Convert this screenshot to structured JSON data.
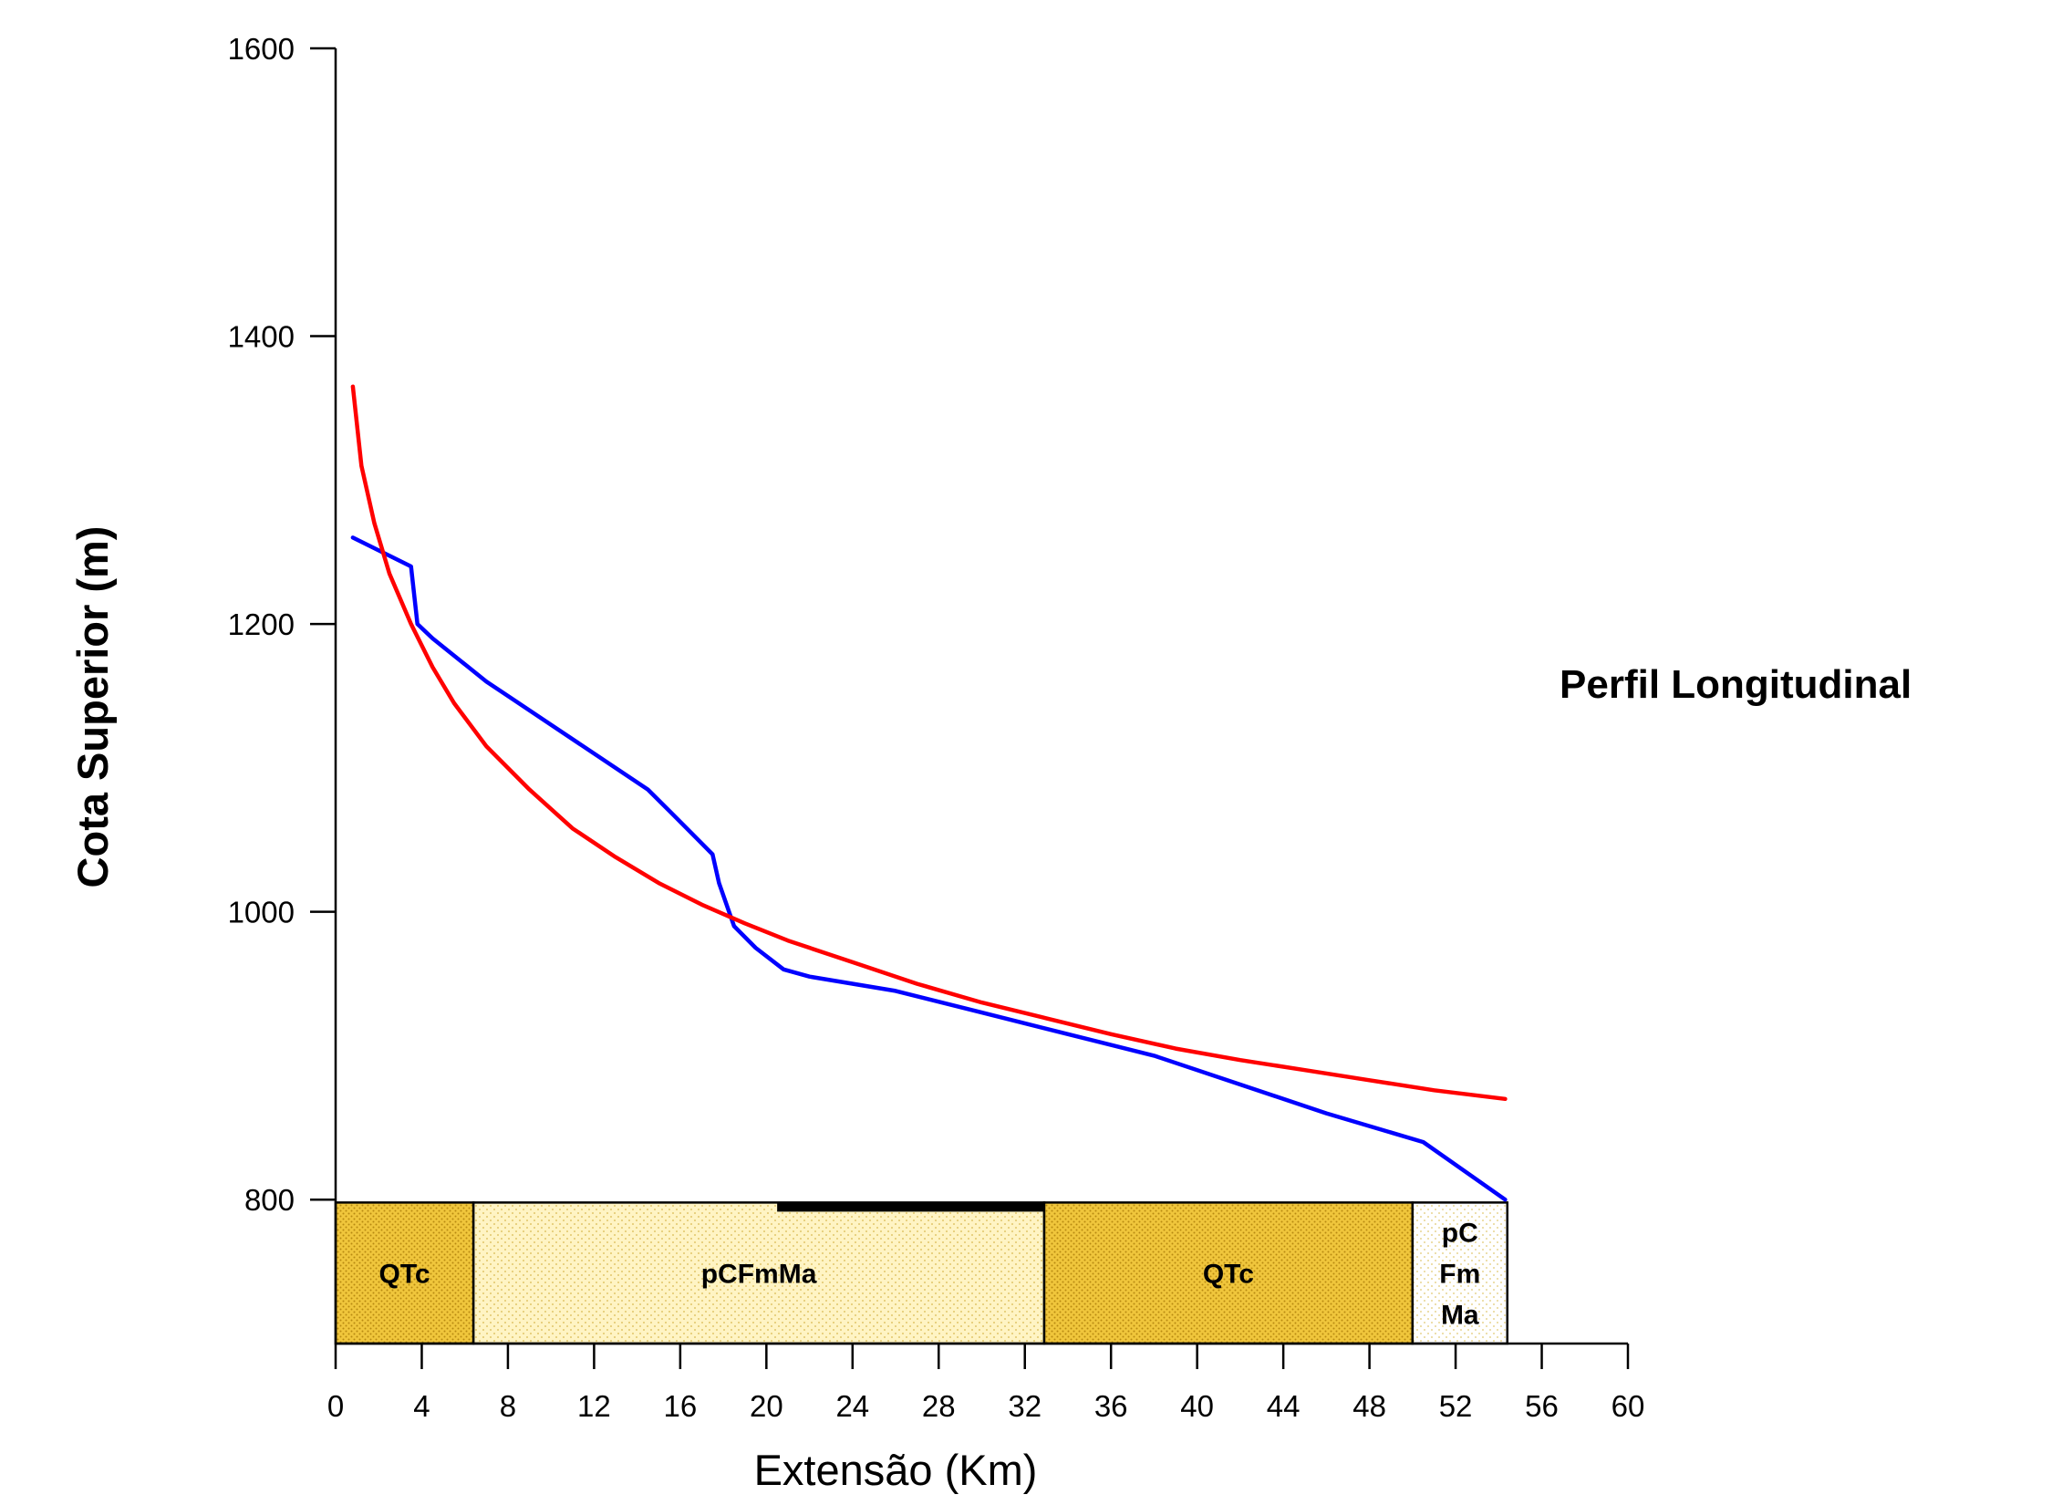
{
  "chart_data": {
    "type": "line",
    "side_title": "Perfil Longitudinal",
    "xlabel": "Extensão (Km)",
    "ylabel": "Cota Superior (m)",
    "xlim": [
      0,
      60
    ],
    "ylim": [
      700,
      1600
    ],
    "x_ticks": [
      0,
      4,
      8,
      12,
      16,
      20,
      24,
      28,
      32,
      36,
      40,
      44,
      48,
      52,
      56,
      60
    ],
    "y_ticks": [
      800,
      1000,
      1200,
      1400,
      1600
    ],
    "grid": false,
    "series": [
      {
        "color": "#0000ff",
        "x": [
          0.8,
          3.5,
          3.8,
          4.5,
          7.0,
          10.0,
          14.5,
          15.5,
          17.5,
          17.8,
          18.5,
          19.5,
          20.8,
          22.0,
          26.0,
          30.0,
          34.0,
          38.0,
          42.0,
          46.0,
          50.5,
          54.3
        ],
        "y": [
          1260,
          1240,
          1200,
          1190,
          1160,
          1130,
          1085,
          1070,
          1040,
          1020,
          990,
          975,
          960,
          955,
          945,
          930,
          915,
          900,
          880,
          860,
          840,
          800
        ]
      },
      {
        "color": "#ff0000",
        "x": [
          0.8,
          1.2,
          1.8,
          2.5,
          3.5,
          4.5,
          5.5,
          7.0,
          9.0,
          11.0,
          13.0,
          15.0,
          17.0,
          19.0,
          21.0,
          24.0,
          27.0,
          30.0,
          33.0,
          36.0,
          39.0,
          42.0,
          45.0,
          48.0,
          51.0,
          54.3
        ],
        "y": [
          1365,
          1310,
          1270,
          1235,
          1200,
          1170,
          1145,
          1115,
          1085,
          1058,
          1038,
          1020,
          1005,
          992,
          980,
          965,
          950,
          937,
          926,
          915,
          905,
          897,
          890,
          883,
          876,
          870
        ]
      }
    ],
    "geology": [
      {
        "label": "QTc",
        "x0": 0,
        "x1": 6.4,
        "color": "#f0c63c",
        "pattern": "dense"
      },
      {
        "label": "pCFmMa",
        "x0": 6.4,
        "x1": 32.9,
        "color": "#fff4c4",
        "pattern": "sparse"
      },
      {
        "label": "QTc",
        "x0": 32.9,
        "x1": 50.0,
        "color": "#f0c63c",
        "pattern": "dense"
      },
      {
        "label_lines": [
          "pC",
          "Fm",
          "Ma"
        ],
        "x0": 50.0,
        "x1": 54.4,
        "color": "#ffffff",
        "pattern": "sparse"
      }
    ],
    "black_bar": {
      "x0": 20.5,
      "x1": 32.9
    }
  }
}
